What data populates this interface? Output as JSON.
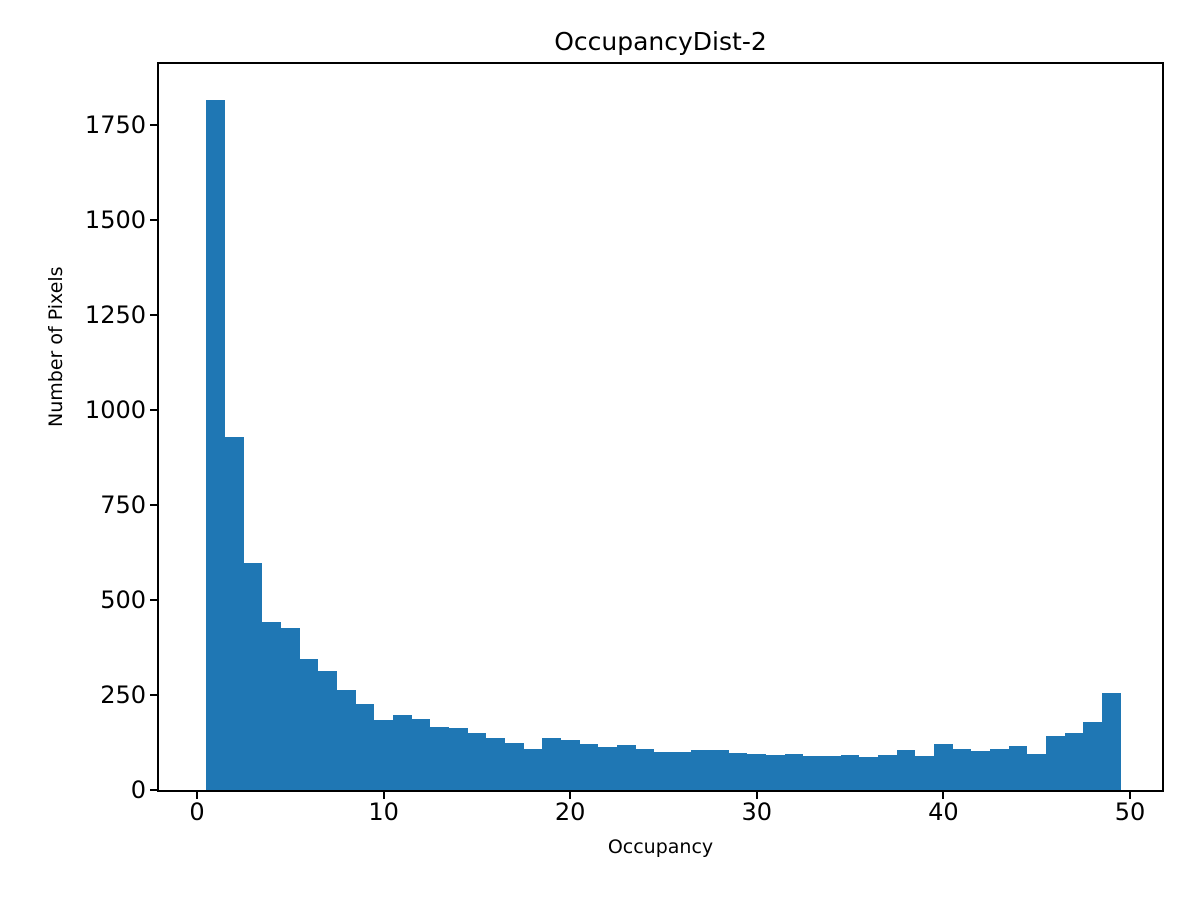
{
  "chart_data": {
    "type": "bar",
    "subtype": "histogram",
    "title": "OccupancyDist-2",
    "xlabel": "Occupancy",
    "ylabel": "Number of Pixels",
    "bin_start": 0.5,
    "bin_width": 1,
    "values": [
      1815,
      928,
      596,
      441,
      427,
      344,
      313,
      263,
      225,
      185,
      198,
      186,
      166,
      164,
      150,
      138,
      124,
      108,
      138,
      131,
      120,
      112,
      118,
      108,
      99,
      99,
      104,
      104,
      98,
      96,
      92,
      94,
      90,
      90,
      93,
      86,
      93,
      105,
      90,
      120,
      107,
      103,
      107,
      115,
      96,
      143,
      149,
      180,
      255
    ],
    "xticks": [
      0,
      10,
      20,
      30,
      40,
      50
    ],
    "yticks": [
      0,
      250,
      500,
      750,
      1000,
      1250,
      1500,
      1750
    ],
    "xlim": [
      -1.95,
      51.95
    ],
    "ylim": [
      0,
      1910
    ],
    "grid": false,
    "legend": null,
    "bar_color": "#1f77b4",
    "background_color": "#ffffff",
    "text_color": "#000000"
  }
}
